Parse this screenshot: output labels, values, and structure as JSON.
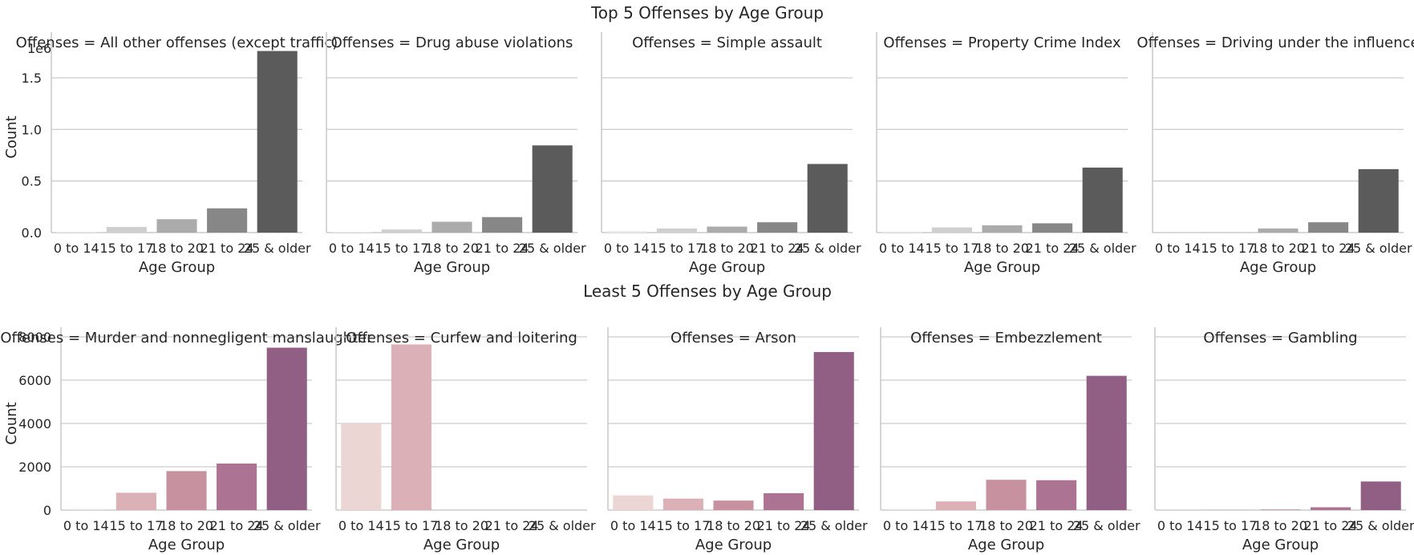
{
  "row_titles": [
    "Top 5 Offenses by Age Group",
    "Least 5 Offenses by Age Group"
  ],
  "shared": {
    "xlabel": "Age Group",
    "ylabel": "Count",
    "categories": [
      "0 to 14",
      "15 to 17",
      "18 to 20",
      "21 to 24",
      "25 & older"
    ]
  },
  "chart_data": [
    {
      "type": "bar",
      "row": 0,
      "title": "Offenses = All other offenses (except traffic)",
      "categories": [
        "0 to 14",
        "15 to 17",
        "18 to 20",
        "21 to 24",
        "25 & older"
      ],
      "values": [
        8000,
        55000,
        130000,
        235000,
        1760000
      ],
      "xlabel": "Age Group",
      "ylabel": "Count",
      "ylim": [
        0,
        1850000
      ],
      "yticks": [
        0,
        500000,
        1000000,
        1500000
      ],
      "ytick_labels": [
        "0.0",
        "0.5",
        "1.0",
        "1.5"
      ],
      "offset_label": "1e6",
      "colors": [
        "#ebebeb",
        "#cfcfcf",
        "#ababab",
        "#878787",
        "#5b5b5b"
      ]
    },
    {
      "type": "bar",
      "row": 0,
      "title": "Offenses = Drug abuse violations",
      "categories": [
        "0 to 14",
        "15 to 17",
        "18 to 20",
        "21 to 24",
        "25 & older"
      ],
      "values": [
        5000,
        30000,
        105000,
        150000,
        845000
      ],
      "xlabel": "Age Group",
      "ylabel": "",
      "ylim": [
        0,
        1850000
      ],
      "colors": [
        "#ebebeb",
        "#cfcfcf",
        "#ababab",
        "#878787",
        "#5b5b5b"
      ]
    },
    {
      "type": "bar",
      "row": 0,
      "title": "Offenses = Simple assault",
      "categories": [
        "0 to 14",
        "15 to 17",
        "18 to 20",
        "21 to 24",
        "25 & older"
      ],
      "values": [
        15000,
        40000,
        58000,
        100000,
        665000
      ],
      "xlabel": "Age Group",
      "ylabel": "",
      "ylim": [
        0,
        1850000
      ],
      "colors": [
        "#ebebeb",
        "#cfcfcf",
        "#ababab",
        "#878787",
        "#5b5b5b"
      ]
    },
    {
      "type": "bar",
      "row": 0,
      "title": "Offenses = Property Crime Index",
      "categories": [
        "0 to 14",
        "15 to 17",
        "18 to 20",
        "21 to 24",
        "25 & older"
      ],
      "values": [
        10000,
        50000,
        70000,
        90000,
        630000
      ],
      "xlabel": "Age Group",
      "ylabel": "",
      "ylim": [
        0,
        1850000
      ],
      "colors": [
        "#ebebeb",
        "#cfcfcf",
        "#ababab",
        "#878787",
        "#5b5b5b"
      ]
    },
    {
      "type": "bar",
      "row": 0,
      "title": "Offenses = Driving under the influence",
      "categories": [
        "0 to 14",
        "15 to 17",
        "18 to 20",
        "21 to 24",
        "25 & older"
      ],
      "values": [
        500,
        5000,
        40000,
        100000,
        615000
      ],
      "xlabel": "Age Group",
      "ylabel": "",
      "ylim": [
        0,
        1850000
      ],
      "colors": [
        "#ebebeb",
        "#cfcfcf",
        "#ababab",
        "#878787",
        "#5b5b5b"
      ]
    },
    {
      "type": "bar",
      "row": 1,
      "title": "Offenses = Murder and nonnegligent manslaughter",
      "categories": [
        "0 to 14",
        "15 to 17",
        "18 to 20",
        "21 to 24",
        "25 & older"
      ],
      "values": [
        30,
        800,
        1800,
        2150,
        7500
      ],
      "xlabel": "Age Group",
      "ylabel": "Count",
      "ylim": [
        0,
        8000
      ],
      "yticks": [
        0,
        2000,
        4000,
        6000,
        8000
      ],
      "ytick_labels": [
        "0",
        "2000",
        "4000",
        "6000",
        "8000"
      ],
      "colors": [
        "#ebd6d4",
        "#dbb1b7",
        "#c7919f",
        "#ad7393",
        "#915e84"
      ]
    },
    {
      "type": "bar",
      "row": 1,
      "title": "Offenses = Curfew and loitering",
      "categories": [
        "0 to 14",
        "15 to 17",
        "18 to 20",
        "21 to 24",
        "25 & older"
      ],
      "values": [
        4000,
        7650,
        0,
        0,
        0
      ],
      "xlabel": "Age Group",
      "ylabel": "",
      "ylim": [
        0,
        8000
      ],
      "colors": [
        "#ebd6d4",
        "#dbb1b7",
        "#c7919f",
        "#ad7393",
        "#915e84"
      ]
    },
    {
      "type": "bar",
      "row": 1,
      "title": "Offenses = Arson",
      "categories": [
        "0 to 14",
        "15 to 17",
        "18 to 20",
        "21 to 24",
        "25 & older"
      ],
      "values": [
        680,
        530,
        440,
        780,
        7300
      ],
      "xlabel": "Age Group",
      "ylabel": "",
      "ylim": [
        0,
        8000
      ],
      "colors": [
        "#ebd6d4",
        "#dbb1b7",
        "#c7919f",
        "#ad7393",
        "#915e84"
      ]
    },
    {
      "type": "bar",
      "row": 1,
      "title": "Offenses = Embezzlement",
      "categories": [
        "0 to 14",
        "15 to 17",
        "18 to 20",
        "21 to 24",
        "25 & older"
      ],
      "values": [
        30,
        400,
        1400,
        1380,
        6200
      ],
      "xlabel": "Age Group",
      "ylabel": "",
      "ylim": [
        0,
        8000
      ],
      "colors": [
        "#ebd6d4",
        "#dbb1b7",
        "#c7919f",
        "#ad7393",
        "#915e84"
      ]
    },
    {
      "type": "bar",
      "row": 1,
      "title": "Offenses = Gambling",
      "categories": [
        "0 to 14",
        "15 to 17",
        "18 to 20",
        "21 to 24",
        "25 & older"
      ],
      "values": [
        5,
        10,
        30,
        130,
        1320
      ],
      "xlabel": "Age Group",
      "ylabel": "",
      "ylim": [
        0,
        8000
      ],
      "colors": [
        "#ebd6d4",
        "#dbb1b7",
        "#c7919f",
        "#ad7393",
        "#915e84"
      ]
    }
  ]
}
